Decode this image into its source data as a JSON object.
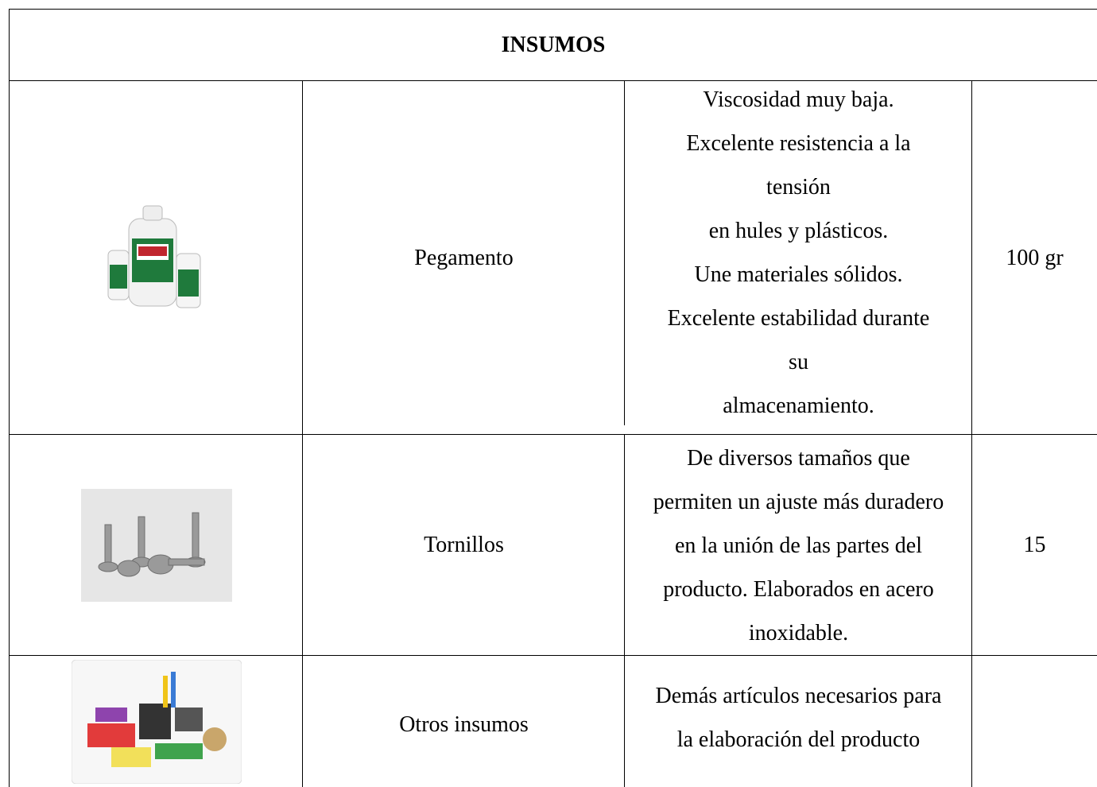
{
  "header": {
    "title": "INSUMOS"
  },
  "table": {
    "rows": [
      {
        "name": "Pegamento",
        "description": [
          "Viscosidad muy baja.",
          "Excelente resistencia a la",
          "tensión",
          "en hules y plásticos.",
          "Une materiales sólidos.",
          "Excelente estabilidad durante",
          "su",
          "almacenamiento."
        ],
        "quantity": "100 gr"
      },
      {
        "name": "Tornillos",
        "description": [
          "De diversos tamaños que",
          "permiten un ajuste más duradero",
          "en la unión de las partes del",
          "producto. Elaborados en acero",
          "inoxidable."
        ],
        "quantity": 15
      },
      {
        "name": "Otros insumos",
        "description": [
          "Demás artículos necesarios para",
          "la elaboración del producto"
        ]
      }
    ]
  }
}
